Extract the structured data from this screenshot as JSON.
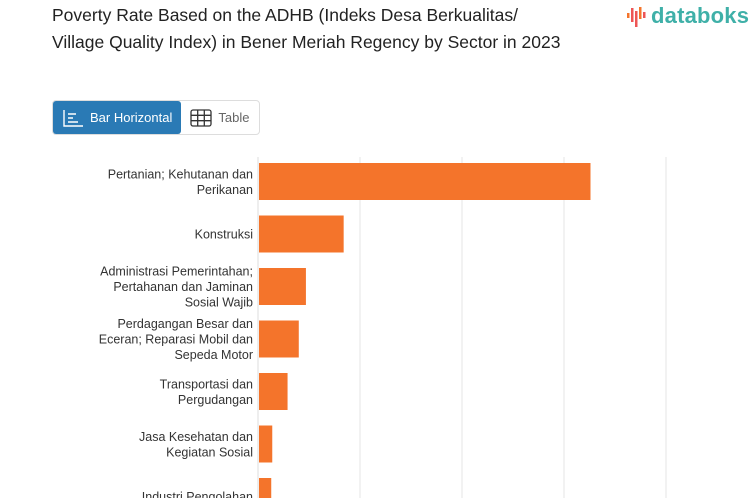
{
  "header": {
    "title": "Poverty Rate Based on the ADHB (Indeks Desa Berkualitas/ Village Quality Index) in Bener Meriah Regency by Sector in 2023",
    "logo_text": "databoks"
  },
  "toggle": {
    "bar_label": "Bar Horizontal",
    "table_label": "Table",
    "active": "Bar Horizontal"
  },
  "colors": {
    "bar": "#f4742b",
    "active_button": "#2a7ab5",
    "logo": "#3fb0a8",
    "grid": "#e5e5e5"
  },
  "chart_data": {
    "type": "bar",
    "orientation": "horizontal",
    "grid": true,
    "categories": [
      [
        "Pertanian; Kehutanan dan",
        "Perikanan"
      ],
      [
        "Konstruksi"
      ],
      [
        "Administrasi Pemerintahan;",
        "Pertahanan dan Jaminan",
        "Sosial Wajib"
      ],
      [
        "Perdagangan Besar dan",
        "Eceran; Reparasi Mobil dan",
        "Sepeda Motor"
      ],
      [
        "Transportasi dan",
        "Pergudangan"
      ],
      [
        "Jasa Kesehatan dan",
        "Kegiatan Sosial"
      ],
      [
        "Industri Pengolahan"
      ]
    ],
    "values": [
      32.5,
      8.3,
      4.6,
      3.9,
      2.8,
      1.3,
      1.2
    ],
    "xlim": [
      0,
      50
    ]
  }
}
